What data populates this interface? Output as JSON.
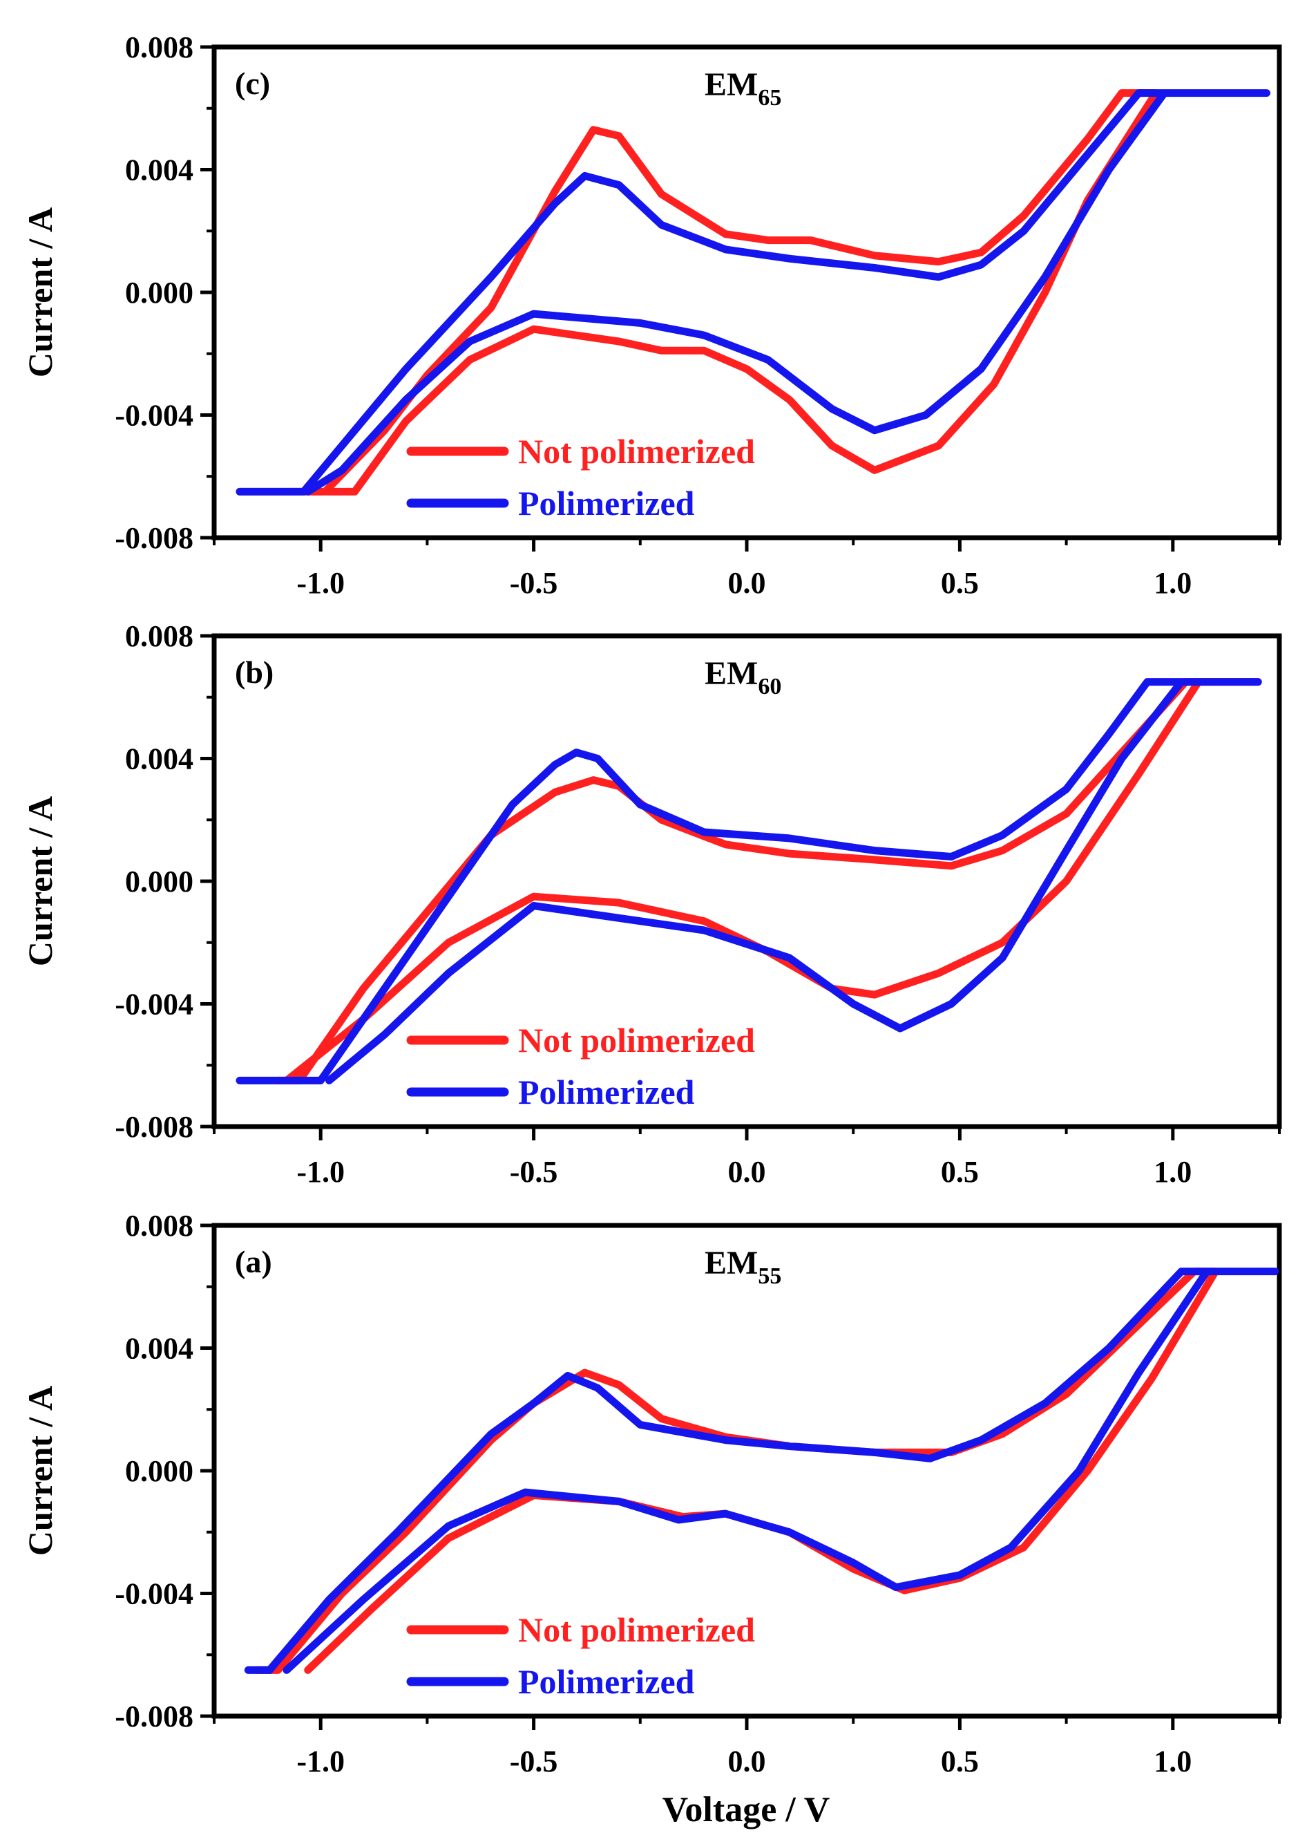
{
  "figure": {
    "xlabel": "Voltage / V",
    "ylabel": "Current / A",
    "x_ticks": [
      "-1.0",
      "-0.5",
      "0.0",
      "0.5",
      "1.0"
    ],
    "y_ticks": [
      "-0.008",
      "-0.004",
      "0.000",
      "0.004",
      "0.008"
    ]
  },
  "chart_data": [
    {
      "type": "line",
      "panel": "(c)",
      "title_main": "EM",
      "title_sub": "65",
      "xlabel": "Voltage / V",
      "ylabel": "Current / A",
      "xlim": [
        -1.25,
        1.25
      ],
      "ylim": [
        -0.008,
        0.008
      ],
      "legend_position": "bottom-left",
      "series": [
        {
          "name": "Not polimerized",
          "color": "#ff2020",
          "points": [
            [
              -1.19,
              -0.0065
            ],
            [
              -0.99,
              -0.0065
            ],
            [
              -0.85,
              -0.0045
            ],
            [
              -0.75,
              -0.0027
            ],
            [
              -0.6,
              -0.0005
            ],
            [
              -0.45,
              0.0033
            ],
            [
              -0.36,
              0.0053
            ],
            [
              -0.3,
              0.0051
            ],
            [
              -0.2,
              0.0032
            ],
            [
              -0.05,
              0.0019
            ],
            [
              0.05,
              0.0017
            ],
            [
              0.15,
              0.0017
            ],
            [
              0.3,
              0.0012
            ],
            [
              0.45,
              0.001
            ],
            [
              0.55,
              0.0013
            ],
            [
              0.65,
              0.0025
            ],
            [
              0.8,
              0.005
            ],
            [
              0.88,
              0.0065
            ],
            [
              0.96,
              0.0065
            ],
            [
              0.8,
              0.003
            ],
            [
              0.7,
              0.0
            ],
            [
              0.58,
              -0.003
            ],
            [
              0.45,
              -0.005
            ],
            [
              0.3,
              -0.0058
            ],
            [
              0.2,
              -0.005
            ],
            [
              0.1,
              -0.0035
            ],
            [
              0.0,
              -0.0025
            ],
            [
              -0.1,
              -0.0019
            ],
            [
              -0.2,
              -0.0019
            ],
            [
              -0.3,
              -0.0016
            ],
            [
              -0.5,
              -0.0012
            ],
            [
              -0.65,
              -0.0022
            ],
            [
              -0.8,
              -0.0042
            ],
            [
              -0.92,
              -0.0065
            ],
            [
              -1.05,
              -0.0065
            ]
          ]
        },
        {
          "name": "Polimerized",
          "color": "#1515ee",
          "points": [
            [
              -1.19,
              -0.0065
            ],
            [
              -1.04,
              -0.0065
            ],
            [
              -0.92,
              -0.0045
            ],
            [
              -0.8,
              -0.0025
            ],
            [
              -0.6,
              0.0005
            ],
            [
              -0.45,
              0.0029
            ],
            [
              -0.38,
              0.0038
            ],
            [
              -0.3,
              0.0035
            ],
            [
              -0.2,
              0.0022
            ],
            [
              -0.05,
              0.0014
            ],
            [
              0.1,
              0.0011
            ],
            [
              0.3,
              0.0008
            ],
            [
              0.45,
              0.0005
            ],
            [
              0.55,
              0.0009
            ],
            [
              0.65,
              0.002
            ],
            [
              0.8,
              0.0045
            ],
            [
              0.92,
              0.0065
            ],
            [
              1.22,
              0.0065
            ],
            [
              0.98,
              0.0065
            ],
            [
              0.85,
              0.004
            ],
            [
              0.7,
              0.0005
            ],
            [
              0.55,
              -0.0025
            ],
            [
              0.42,
              -0.004
            ],
            [
              0.3,
              -0.0045
            ],
            [
              0.2,
              -0.0038
            ],
            [
              0.05,
              -0.0022
            ],
            [
              -0.1,
              -0.0014
            ],
            [
              -0.25,
              -0.001
            ],
            [
              -0.5,
              -0.0007
            ],
            [
              -0.65,
              -0.0016
            ],
            [
              -0.8,
              -0.0035
            ],
            [
              -0.95,
              -0.0058
            ],
            [
              -1.03,
              -0.0065
            ]
          ]
        }
      ]
    },
    {
      "type": "line",
      "panel": "(b)",
      "title_main": "EM",
      "title_sub": "60",
      "xlabel": "Voltage / V",
      "ylabel": "Current / A",
      "xlim": [
        -1.25,
        1.25
      ],
      "ylim": [
        -0.008,
        0.008
      ],
      "legend_position": "bottom-left",
      "series": [
        {
          "name": "Not polimerized",
          "color": "#ff2020",
          "points": [
            [
              -1.1,
              -0.0065
            ],
            [
              -1.05,
              -0.0065
            ],
            [
              -0.9,
              -0.0035
            ],
            [
              -0.75,
              -0.001
            ],
            [
              -0.6,
              0.0015
            ],
            [
              -0.45,
              0.0029
            ],
            [
              -0.36,
              0.0033
            ],
            [
              -0.3,
              0.0031
            ],
            [
              -0.2,
              0.002
            ],
            [
              -0.05,
              0.0012
            ],
            [
              0.1,
              0.0009
            ],
            [
              0.3,
              0.0007
            ],
            [
              0.48,
              0.0005
            ],
            [
              0.6,
              0.001
            ],
            [
              0.75,
              0.0022
            ],
            [
              0.9,
              0.0045
            ],
            [
              1.03,
              0.0065
            ],
            [
              1.2,
              0.0065
            ],
            [
              1.06,
              0.0065
            ],
            [
              0.92,
              0.0035
            ],
            [
              0.75,
              0.0
            ],
            [
              0.6,
              -0.002
            ],
            [
              0.45,
              -0.003
            ],
            [
              0.3,
              -0.0037
            ],
            [
              0.2,
              -0.0035
            ],
            [
              0.05,
              -0.0023
            ],
            [
              -0.1,
              -0.0013
            ],
            [
              -0.3,
              -0.0007
            ],
            [
              -0.5,
              -0.0005
            ],
            [
              -0.7,
              -0.002
            ],
            [
              -0.9,
              -0.0045
            ],
            [
              -1.08,
              -0.0065
            ]
          ]
        },
        {
          "name": "Polimerized",
          "color": "#1515ee",
          "points": [
            [
              -1.19,
              -0.0065
            ],
            [
              -1.0,
              -0.0065
            ],
            [
              -0.85,
              -0.0035
            ],
            [
              -0.7,
              -0.0005
            ],
            [
              -0.55,
              0.0025
            ],
            [
              -0.45,
              0.0038
            ],
            [
              -0.4,
              0.0042
            ],
            [
              -0.35,
              0.004
            ],
            [
              -0.25,
              0.0025
            ],
            [
              -0.1,
              0.0016
            ],
            [
              0.1,
              0.0014
            ],
            [
              0.3,
              0.001
            ],
            [
              0.48,
              0.0008
            ],
            [
              0.6,
              0.0015
            ],
            [
              0.75,
              0.003
            ],
            [
              0.85,
              0.0048
            ],
            [
              0.94,
              0.0065
            ],
            [
              1.2,
              0.0065
            ],
            [
              1.02,
              0.0065
            ],
            [
              0.88,
              0.004
            ],
            [
              0.75,
              0.001
            ],
            [
              0.6,
              -0.0025
            ],
            [
              0.48,
              -0.004
            ],
            [
              0.36,
              -0.0048
            ],
            [
              0.25,
              -0.004
            ],
            [
              0.1,
              -0.0025
            ],
            [
              -0.1,
              -0.0016
            ],
            [
              -0.3,
              -0.0012
            ],
            [
              -0.5,
              -0.0008
            ],
            [
              -0.7,
              -0.003
            ],
            [
              -0.85,
              -0.005
            ],
            [
              -0.98,
              -0.0065
            ]
          ]
        }
      ]
    },
    {
      "type": "line",
      "panel": "(a)",
      "title_main": "EM",
      "title_sub": "55",
      "xlabel": "Voltage / V",
      "ylabel": "Current / A",
      "xlim": [
        -1.25,
        1.25
      ],
      "ylim": [
        -0.008,
        0.008
      ],
      "legend_position": "bottom-left",
      "series": [
        {
          "name": "Not polimerized",
          "color": "#ff2020",
          "points": [
            [
              -1.15,
              -0.0065
            ],
            [
              -1.1,
              -0.0065
            ],
            [
              -0.95,
              -0.004
            ],
            [
              -0.8,
              -0.002
            ],
            [
              -0.6,
              0.001
            ],
            [
              -0.5,
              0.0022
            ],
            [
              -0.38,
              0.0032
            ],
            [
              -0.3,
              0.0028
            ],
            [
              -0.2,
              0.0017
            ],
            [
              -0.05,
              0.0011
            ],
            [
              0.1,
              0.0008
            ],
            [
              0.3,
              0.0006
            ],
            [
              0.48,
              0.0006
            ],
            [
              0.6,
              0.0012
            ],
            [
              0.75,
              0.0025
            ],
            [
              0.9,
              0.0045
            ],
            [
              1.05,
              0.0065
            ],
            [
              1.1,
              0.0065
            ],
            [
              0.95,
              0.003
            ],
            [
              0.8,
              0.0
            ],
            [
              0.65,
              -0.0025
            ],
            [
              0.5,
              -0.0035
            ],
            [
              0.37,
              -0.0039
            ],
            [
              0.25,
              -0.0032
            ],
            [
              0.1,
              -0.002
            ],
            [
              -0.05,
              -0.0014
            ],
            [
              -0.15,
              -0.0015
            ],
            [
              -0.3,
              -0.001
            ],
            [
              -0.5,
              -0.0008
            ],
            [
              -0.7,
              -0.0022
            ],
            [
              -0.88,
              -0.0045
            ],
            [
              -1.03,
              -0.0065
            ]
          ]
        },
        {
          "name": "Polimerized",
          "color": "#1515ee",
          "points": [
            [
              -1.17,
              -0.0065
            ],
            [
              -1.12,
              -0.0065
            ],
            [
              -0.98,
              -0.0042
            ],
            [
              -0.82,
              -0.002
            ],
            [
              -0.6,
              0.0012
            ],
            [
              -0.5,
              0.0022
            ],
            [
              -0.42,
              0.0031
            ],
            [
              -0.35,
              0.0027
            ],
            [
              -0.25,
              0.0015
            ],
            [
              -0.05,
              0.001
            ],
            [
              0.1,
              0.0008
            ],
            [
              0.3,
              0.0006
            ],
            [
              0.43,
              0.0004
            ],
            [
              0.55,
              0.001
            ],
            [
              0.7,
              0.0022
            ],
            [
              0.85,
              0.004
            ],
            [
              1.02,
              0.0065
            ],
            [
              1.24,
              0.0065
            ],
            [
              1.08,
              0.0065
            ],
            [
              0.92,
              0.0032
            ],
            [
              0.78,
              0.0
            ],
            [
              0.62,
              -0.0025
            ],
            [
              0.5,
              -0.0034
            ],
            [
              0.35,
              -0.0038
            ],
            [
              0.25,
              -0.003
            ],
            [
              0.1,
              -0.002
            ],
            [
              -0.05,
              -0.0014
            ],
            [
              -0.16,
              -0.0016
            ],
            [
              -0.3,
              -0.001
            ],
            [
              -0.52,
              -0.0007
            ],
            [
              -0.7,
              -0.0018
            ],
            [
              -0.9,
              -0.0042
            ],
            [
              -1.08,
              -0.0065
            ]
          ]
        }
      ]
    }
  ]
}
